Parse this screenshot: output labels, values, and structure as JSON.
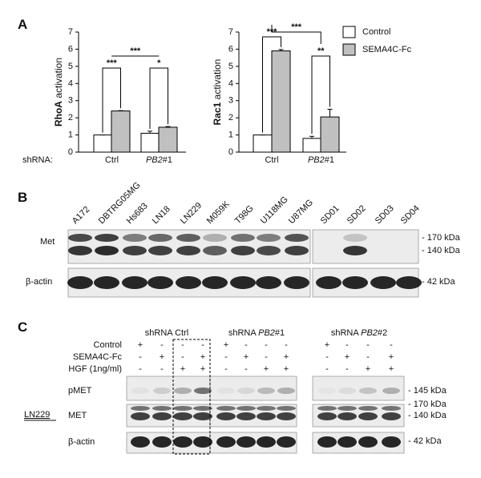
{
  "panel_labels": [
    "A",
    "B",
    "C"
  ],
  "chart_data": [
    {
      "type": "bar",
      "y_label": "RhoA activation",
      "x_label": "shRNA:",
      "categories": [
        "Ctrl",
        "PB2#1"
      ],
      "series": [
        {
          "name": "Control",
          "color": "#ffffff",
          "values": [
            1,
            1.1
          ],
          "errors": [
            0,
            0.12
          ]
        },
        {
          "name": "SEMA4C-Fc",
          "color": "#c0c0c0",
          "values": [
            2.4,
            1.45
          ],
          "errors": [
            0.02,
            0.04
          ]
        }
      ],
      "ylim": [
        0,
        7
      ],
      "yticks": [
        0,
        1,
        2,
        3,
        4,
        5,
        6,
        7
      ],
      "annotations": [
        "***",
        "*",
        "***"
      ]
    },
    {
      "type": "bar",
      "y_label": "Rac1 activation",
      "categories": [
        "Ctrl",
        "PB2#1"
      ],
      "series": [
        {
          "name": "Control",
          "color": "#ffffff",
          "values": [
            1,
            0.8
          ],
          "errors": [
            0,
            0.12
          ]
        },
        {
          "name": "SEMA4C-Fc",
          "color": "#c0c0c0",
          "values": [
            5.9,
            2.05
          ],
          "errors": [
            0.08,
            0.45
          ]
        }
      ],
      "ylim": [
        0,
        7
      ],
      "yticks": [
        0,
        1,
        2,
        3,
        4,
        5,
        6,
        7
      ],
      "annotations": [
        "***",
        "**",
        "***"
      ]
    }
  ],
  "panel_b": {
    "lanes": [
      "A172",
      "DBTRG05MG",
      "Hs683",
      "LN18",
      "LN229",
      "M059K",
      "T98G",
      "U118MG",
      "U87MG",
      "SD01",
      "SD02",
      "SD03",
      "SD04"
    ],
    "rows": [
      "Met",
      "β-actin"
    ],
    "sizes": [
      "- 170 kDa",
      "- 140 kDa",
      "- 42 kDa"
    ]
  },
  "panel_c": {
    "groups": [
      "shRNA Ctrl",
      "shRNA PB2#1",
      "shRNA PB2#2"
    ],
    "conditions": [
      {
        "label": "Control",
        "signs": [
          "+",
          "-",
          "-",
          "-",
          "+",
          "-",
          "-",
          "-",
          "+",
          "-",
          "-",
          "-"
        ]
      },
      {
        "label": "SEMA4C-Fc",
        "signs": [
          "-",
          "+",
          "-",
          "+",
          "-",
          "+",
          "-",
          "+",
          "-",
          "+",
          "-",
          "+"
        ]
      },
      {
        "label": "HGF (1ng/ml)",
        "signs": [
          "-",
          "-",
          "+",
          "+",
          "-",
          "-",
          "+",
          "+",
          "-",
          "-",
          "+",
          "+"
        ]
      }
    ],
    "cell_line": "LN229",
    "rows": [
      "pMET",
      "MET",
      "β-actin"
    ],
    "sizes": [
      "- 145 kDa",
      "- 170 kDa",
      "- 140 kDa",
      "- 42 kDa"
    ]
  }
}
